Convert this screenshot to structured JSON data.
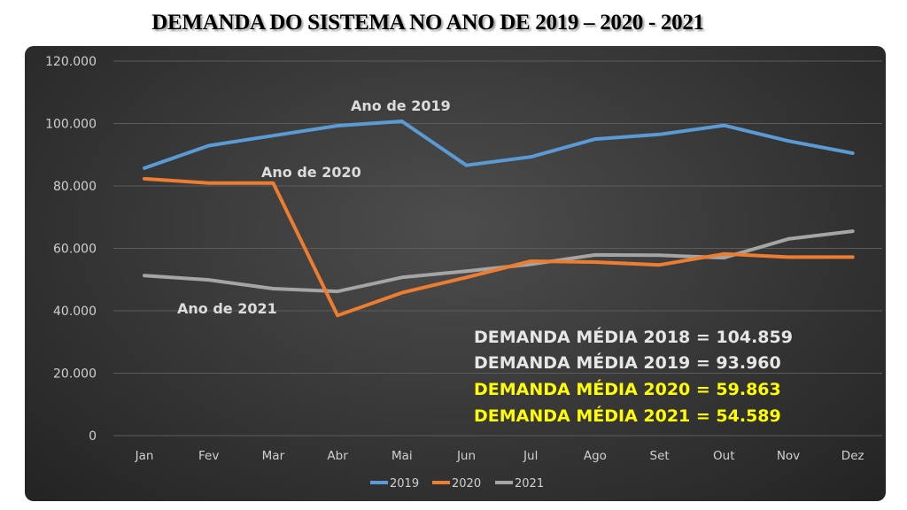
{
  "title": "DEMANDA DO SISTEMA NO ANO DE 2019 – 2020 - 2021",
  "chart_data": {
    "type": "line",
    "title": "DEMANDA DO SISTEMA NO ANO DE 2019 – 2020 - 2021",
    "categories": [
      "Jan",
      "Fev",
      "Mar",
      "Abr",
      "Mai",
      "Jun",
      "Jul",
      "Ago",
      "Set",
      "Out",
      "Nov",
      "Dez"
    ],
    "y_ticks": [
      "0",
      "20.000",
      "40.000",
      "60.000",
      "80.000",
      "100.000",
      "120.000"
    ],
    "ylim": [
      0,
      120000
    ],
    "grid": true,
    "legend_position": "bottom",
    "series": [
      {
        "name": "2019",
        "color": "#5b9bd5",
        "values": [
          85700,
          92900,
          96100,
          99300,
          100700,
          86600,
          89300,
          95000,
          96500,
          99400,
          94400,
          90500
        ]
      },
      {
        "name": "2020",
        "color": "#ed7d31",
        "values": [
          82300,
          80900,
          80900,
          38500,
          45800,
          50700,
          55900,
          55600,
          54700,
          58200,
          57200,
          57200
        ]
      },
      {
        "name": "2021",
        "color": "#a5a5a5",
        "values": [
          51300,
          49900,
          47100,
          46200,
          50700,
          52700,
          54900,
          57900,
          57800,
          57000,
          63000,
          65500
        ]
      }
    ],
    "series_labels": [
      "Ano de 2019",
      "Ano de 2020",
      "Ano de 2021"
    ],
    "annotations": [
      {
        "text": "DEMANDA MÉDIA 2018  = 104.859",
        "color": "#e6e6e6"
      },
      {
        "text": "DEMANDA MÉDIA 2019  = 93.960",
        "color": "#e6e6e6"
      },
      {
        "text": "DEMANDA MÉDIA 2020  = 59.863",
        "color": "#ffff00"
      },
      {
        "text": "DEMANDA MÉDIA 2021  = 54.589",
        "color": "#ffff00"
      }
    ]
  }
}
